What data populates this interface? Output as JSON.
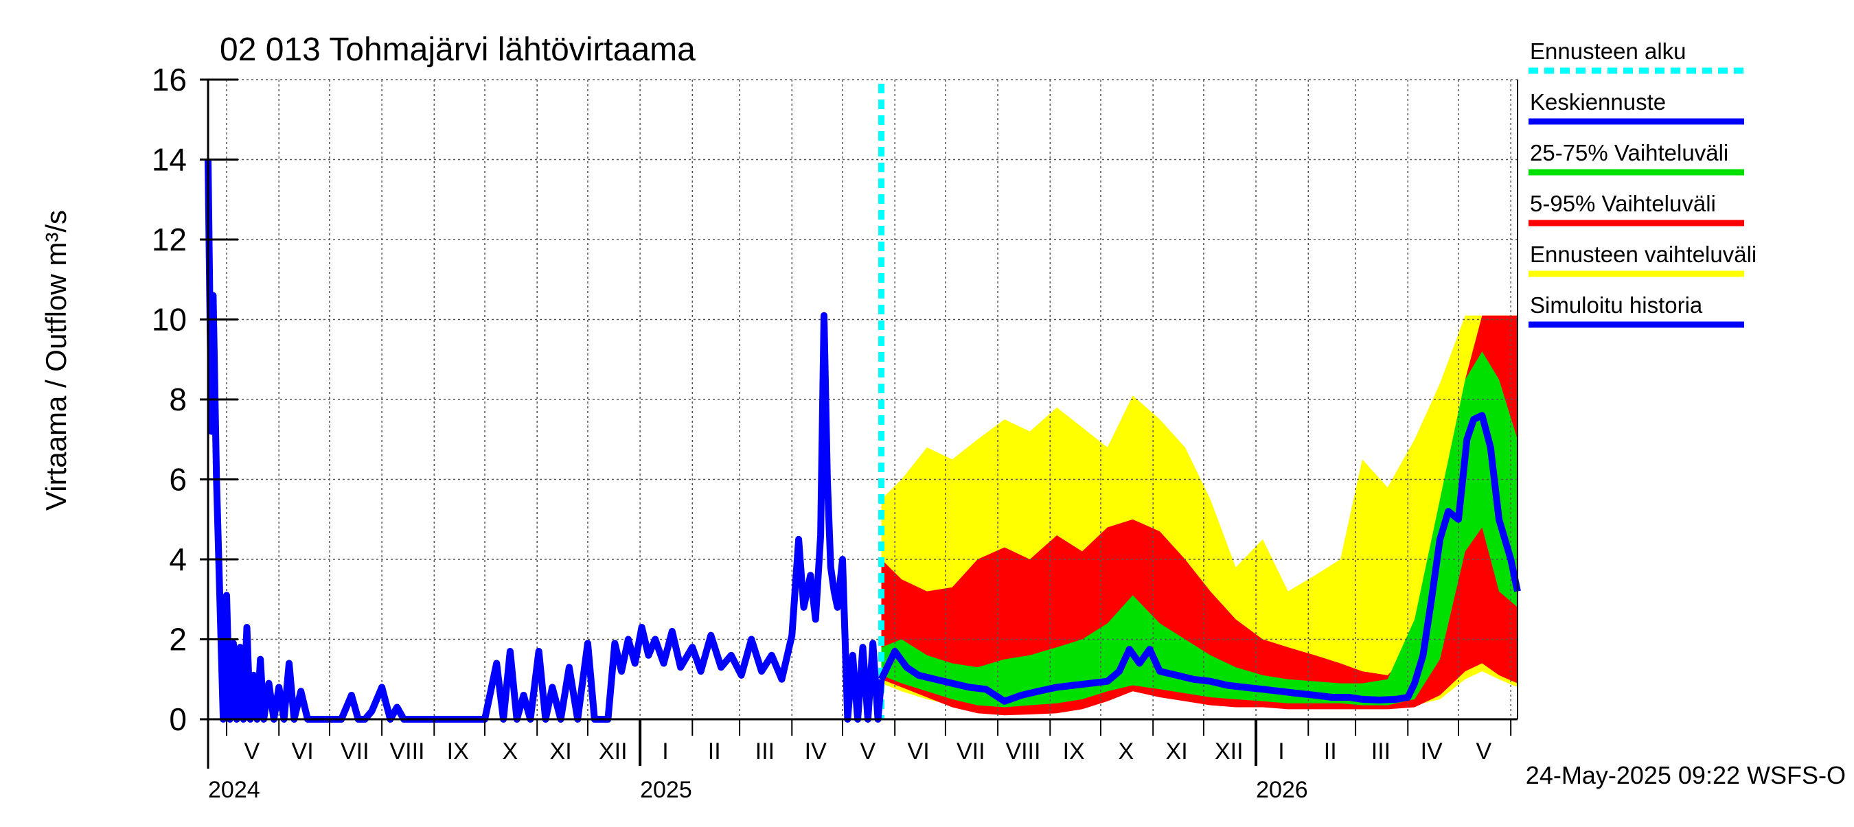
{
  "chart_data": {
    "type": "area",
    "title": "02 013 Tohmajärvi lähtövirtaama",
    "ylabel": "Virtaama / Outflow    m³/s",
    "ylim": [
      0,
      16
    ],
    "yticks": [
      "0",
      "2",
      "4",
      "6",
      "8",
      "10",
      "12",
      "14",
      "16"
    ],
    "grid": true,
    "legend_position": "right",
    "x_range": [
      "2024-04-20",
      "2026-06-05"
    ],
    "forecast_start": "2025-05-24",
    "month_labels": [
      {
        "label": "V",
        "mid": "2024-05-16"
      },
      {
        "label": "VI",
        "mid": "2024-06-15"
      },
      {
        "label": "VII",
        "mid": "2024-07-16"
      },
      {
        "label": "VIII",
        "mid": "2024-08-16"
      },
      {
        "label": "IX",
        "mid": "2024-09-15"
      },
      {
        "label": "X",
        "mid": "2024-10-16"
      },
      {
        "label": "XI",
        "mid": "2024-11-15"
      },
      {
        "label": "XII",
        "mid": "2024-12-16"
      },
      {
        "label": "I",
        "mid": "2025-01-16"
      },
      {
        "label": "II",
        "mid": "2025-02-14"
      },
      {
        "label": "III",
        "mid": "2025-03-16"
      },
      {
        "label": "IV",
        "mid": "2025-04-15"
      },
      {
        "label": "V",
        "mid": "2025-05-16"
      },
      {
        "label": "VI",
        "mid": "2025-06-15"
      },
      {
        "label": "VII",
        "mid": "2025-07-16"
      },
      {
        "label": "VIII",
        "mid": "2025-08-16"
      },
      {
        "label": "IX",
        "mid": "2025-09-15"
      },
      {
        "label": "X",
        "mid": "2025-10-16"
      },
      {
        "label": "XI",
        "mid": "2025-11-15"
      },
      {
        "label": "XII",
        "mid": "2025-12-16"
      },
      {
        "label": "I",
        "mid": "2026-01-16"
      },
      {
        "label": "II",
        "mid": "2026-02-14"
      },
      {
        "label": "III",
        "mid": "2026-03-16"
      },
      {
        "label": "IV",
        "mid": "2026-04-15"
      },
      {
        "label": "V",
        "mid": "2026-05-16"
      }
    ],
    "month_gridlines": [
      "2024-05-01",
      "2024-06-01",
      "2024-07-01",
      "2024-08-01",
      "2024-09-01",
      "2024-10-01",
      "2024-11-01",
      "2024-12-01",
      "2025-01-01",
      "2025-02-01",
      "2025-03-01",
      "2025-04-01",
      "2025-05-01",
      "2025-06-01",
      "2025-07-01",
      "2025-08-01",
      "2025-09-01",
      "2025-10-01",
      "2025-11-01",
      "2025-12-01",
      "2026-01-01",
      "2026-02-01",
      "2026-03-01",
      "2026-04-01",
      "2026-05-01",
      "2026-06-01"
    ],
    "year_labels": [
      {
        "label": "2024",
        "date": "2024-04-20"
      },
      {
        "label": "2025",
        "date": "2025-01-01"
      },
      {
        "label": "2026",
        "date": "2026-01-01"
      }
    ],
    "year_boundaries": [
      "2025-01-01",
      "2026-01-01"
    ],
    "series": [
      {
        "name": "Simuloitu historia",
        "color": "#0000ff",
        "type": "line",
        "x": [
          "2024-04-20",
          "2024-04-22",
          "2024-04-23",
          "2024-04-25",
          "2024-04-27",
          "2024-04-29",
          "2024-05-01",
          "2024-05-03",
          "2024-05-05",
          "2024-05-07",
          "2024-05-09",
          "2024-05-11",
          "2024-05-13",
          "2024-05-15",
          "2024-05-17",
          "2024-05-19",
          "2024-05-21",
          "2024-05-23",
          "2024-05-26",
          "2024-05-29",
          "2024-06-01",
          "2024-06-04",
          "2024-06-07",
          "2024-06-10",
          "2024-06-14",
          "2024-06-18",
          "2024-06-22",
          "2024-06-26",
          "2024-07-01",
          "2024-07-08",
          "2024-07-14",
          "2024-07-18",
          "2024-07-22",
          "2024-07-26",
          "2024-08-01",
          "2024-08-06",
          "2024-08-10",
          "2024-08-14",
          "2024-08-18",
          "2024-08-24",
          "2024-09-01",
          "2024-09-15",
          "2024-10-01",
          "2024-10-08",
          "2024-10-12",
          "2024-10-16",
          "2024-10-20",
          "2024-10-24",
          "2024-10-28",
          "2024-11-02",
          "2024-11-06",
          "2024-11-10",
          "2024-11-15",
          "2024-11-20",
          "2024-11-25",
          "2024-12-01",
          "2024-12-05",
          "2024-12-09",
          "2024-12-13",
          "2024-12-17",
          "2024-12-21",
          "2024-12-25",
          "2024-12-29",
          "2025-01-02",
          "2025-01-06",
          "2025-01-10",
          "2025-01-15",
          "2025-01-20",
          "2025-01-25",
          "2025-02-01",
          "2025-02-06",
          "2025-02-12",
          "2025-02-18",
          "2025-02-24",
          "2025-03-02",
          "2025-03-08",
          "2025-03-14",
          "2025-03-20",
          "2025-03-26",
          "2025-04-01",
          "2025-04-05",
          "2025-04-08",
          "2025-04-12",
          "2025-04-15",
          "2025-04-18",
          "2025-04-20",
          "2025-04-22",
          "2025-04-24",
          "2025-04-26",
          "2025-04-28",
          "2025-05-01",
          "2025-05-04",
          "2025-05-07",
          "2025-05-10",
          "2025-05-13",
          "2025-05-16",
          "2025-05-19",
          "2025-05-22",
          "2025-05-24"
        ],
        "y": [
          14.0,
          7.2,
          10.6,
          6.0,
          3.0,
          0.0,
          3.1,
          0.0,
          1.9,
          0.0,
          1.8,
          0.0,
          2.3,
          0.0,
          1.1,
          0.0,
          1.5,
          0.0,
          0.9,
          0.0,
          0.8,
          0.0,
          1.4,
          0.0,
          0.7,
          0.0,
          0.0,
          0.0,
          0.0,
          0.0,
          0.6,
          0.0,
          0.0,
          0.2,
          0.8,
          0.0,
          0.3,
          0.0,
          0.0,
          0.0,
          0.0,
          0.0,
          0.0,
          1.4,
          0.0,
          1.7,
          0.0,
          0.6,
          0.0,
          1.7,
          0.0,
          0.8,
          0.0,
          1.3,
          0.0,
          1.9,
          0.0,
          0.0,
          0.0,
          1.9,
          1.2,
          2.0,
          1.4,
          2.3,
          1.6,
          2.0,
          1.4,
          2.2,
          1.3,
          1.8,
          1.2,
          2.1,
          1.3,
          1.6,
          1.1,
          2.0,
          1.2,
          1.6,
          1.0,
          2.1,
          4.5,
          2.8,
          3.6,
          2.5,
          4.6,
          10.1,
          6.0,
          3.8,
          3.2,
          2.8,
          4.0,
          0.0,
          1.6,
          0.0,
          1.8,
          0.0,
          1.9,
          0.0,
          1.0
        ]
      },
      {
        "name": "Ennusteen vaihteluväli",
        "color": "#ffff00",
        "type": "band",
        "x": [
          "2025-05-24",
          "2025-06-05",
          "2025-06-20",
          "2025-07-05",
          "2025-07-20",
          "2025-08-05",
          "2025-08-20",
          "2025-09-05",
          "2025-09-20",
          "2025-10-05",
          "2025-10-20",
          "2025-11-05",
          "2025-11-20",
          "2025-12-05",
          "2025-12-20",
          "2026-01-05",
          "2026-01-20",
          "2026-02-05",
          "2026-02-20",
          "2026-03-05",
          "2026-03-20",
          "2026-04-05",
          "2026-04-20",
          "2026-05-05",
          "2026-05-15",
          "2026-05-25",
          "2026-06-05"
        ],
        "low": [
          0.9,
          0.7,
          0.5,
          0.35,
          0.3,
          0.3,
          0.3,
          0.35,
          0.45,
          0.6,
          0.7,
          0.6,
          0.5,
          0.45,
          0.4,
          0.35,
          0.35,
          0.3,
          0.3,
          0.3,
          0.3,
          0.35,
          0.5,
          1.0,
          1.2,
          1.0,
          0.8
        ],
        "high": [
          5.5,
          6.0,
          6.8,
          6.5,
          7.0,
          7.5,
          7.2,
          7.8,
          7.3,
          6.8,
          8.1,
          7.5,
          6.8,
          5.5,
          3.8,
          4.5,
          3.2,
          3.6,
          4.0,
          6.5,
          5.8,
          7.0,
          8.4,
          10.1,
          10.1,
          10.1,
          10.1
        ]
      },
      {
        "name": "5-95% Vaihteluväli",
        "color": "#ff0000",
        "type": "band",
        "x": [
          "2025-05-24",
          "2025-06-05",
          "2025-06-20",
          "2025-07-05",
          "2025-07-20",
          "2025-08-05",
          "2025-08-20",
          "2025-09-05",
          "2025-09-20",
          "2025-10-05",
          "2025-10-20",
          "2025-11-05",
          "2025-11-20",
          "2025-12-05",
          "2025-12-20",
          "2026-01-05",
          "2026-01-20",
          "2026-02-05",
          "2026-02-20",
          "2026-03-05",
          "2026-03-20",
          "2026-04-05",
          "2026-04-20",
          "2026-05-05",
          "2026-05-15",
          "2026-05-25",
          "2026-06-05"
        ],
        "low": [
          1.0,
          0.8,
          0.55,
          0.3,
          0.15,
          0.1,
          0.12,
          0.15,
          0.25,
          0.45,
          0.7,
          0.55,
          0.45,
          0.35,
          0.3,
          0.3,
          0.25,
          0.25,
          0.25,
          0.25,
          0.25,
          0.3,
          0.6,
          1.2,
          1.4,
          1.1,
          0.9
        ],
        "high": [
          4.0,
          3.5,
          3.2,
          3.3,
          4.0,
          4.3,
          4.0,
          4.6,
          4.2,
          4.8,
          5.0,
          4.7,
          4.0,
          3.2,
          2.5,
          2.0,
          1.8,
          1.6,
          1.4,
          1.2,
          1.1,
          1.8,
          4.0,
          8.5,
          10.1,
          10.1,
          10.1
        ]
      },
      {
        "name": "25-75% Vaihteluväli",
        "color": "#00e000",
        "type": "band",
        "x": [
          "2025-05-24",
          "2025-06-05",
          "2025-06-20",
          "2025-07-05",
          "2025-07-20",
          "2025-08-05",
          "2025-08-20",
          "2025-09-05",
          "2025-09-20",
          "2025-10-05",
          "2025-10-20",
          "2025-11-05",
          "2025-11-20",
          "2025-12-05",
          "2025-12-20",
          "2026-01-05",
          "2026-01-20",
          "2026-02-05",
          "2026-02-20",
          "2026-03-05",
          "2026-03-20",
          "2026-04-05",
          "2026-04-20",
          "2026-05-05",
          "2026-05-15",
          "2026-05-25",
          "2026-06-05"
        ],
        "low": [
          1.1,
          0.9,
          0.7,
          0.5,
          0.35,
          0.3,
          0.35,
          0.4,
          0.5,
          0.7,
          0.85,
          0.75,
          0.65,
          0.55,
          0.5,
          0.45,
          0.4,
          0.4,
          0.4,
          0.35,
          0.35,
          0.5,
          1.5,
          4.2,
          4.8,
          3.2,
          2.8
        ],
        "high": [
          1.8,
          2.0,
          1.6,
          1.4,
          1.3,
          1.5,
          1.6,
          1.8,
          2.0,
          2.4,
          3.1,
          2.4,
          2.0,
          1.6,
          1.3,
          1.1,
          1.0,
          0.95,
          0.9,
          0.9,
          1.0,
          2.5,
          5.5,
          8.5,
          9.2,
          8.5,
          7.0
        ]
      },
      {
        "name": "Keskiennuste",
        "color": "#0000ff",
        "type": "line",
        "x": [
          "2025-05-24",
          "2025-06-01",
          "2025-06-08",
          "2025-06-15",
          "2025-06-25",
          "2025-07-05",
          "2025-07-15",
          "2025-07-25",
          "2025-08-05",
          "2025-08-15",
          "2025-08-25",
          "2025-09-05",
          "2025-09-15",
          "2025-09-25",
          "2025-10-05",
          "2025-10-12",
          "2025-10-18",
          "2025-10-24",
          "2025-10-30",
          "2025-11-05",
          "2025-11-15",
          "2025-11-25",
          "2025-12-05",
          "2025-12-15",
          "2025-12-25",
          "2026-01-05",
          "2026-01-15",
          "2026-01-25",
          "2026-02-05",
          "2026-02-15",
          "2026-02-25",
          "2026-03-05",
          "2026-03-15",
          "2026-03-25",
          "2026-04-01",
          "2026-04-05",
          "2026-04-10",
          "2026-04-15",
          "2026-04-20",
          "2026-04-25",
          "2026-05-01",
          "2026-05-06",
          "2026-05-10",
          "2026-05-15",
          "2026-05-20",
          "2026-05-25",
          "2026-06-01",
          "2026-06-05"
        ],
        "y": [
          1.0,
          1.7,
          1.3,
          1.1,
          1.0,
          0.9,
          0.8,
          0.75,
          0.45,
          0.6,
          0.7,
          0.8,
          0.85,
          0.9,
          0.95,
          1.2,
          1.75,
          1.4,
          1.75,
          1.2,
          1.1,
          1.0,
          0.95,
          0.85,
          0.8,
          0.75,
          0.7,
          0.65,
          0.6,
          0.55,
          0.55,
          0.5,
          0.48,
          0.5,
          0.55,
          0.9,
          1.6,
          3.0,
          4.5,
          5.2,
          5.0,
          7.0,
          7.5,
          7.6,
          6.8,
          5.0,
          4.0,
          3.2
        ]
      }
    ],
    "legend": [
      {
        "label": "Ennusteen alku",
        "color": "#00ffff",
        "style": "dashed"
      },
      {
        "label": "Keskiennuste",
        "color": "#0000ff",
        "style": "solid"
      },
      {
        "label": "25-75% Vaihteluväli",
        "color": "#00e000",
        "style": "solid"
      },
      {
        "label": "5-95% Vaihteluväli",
        "color": "#ff0000",
        "style": "solid"
      },
      {
        "label": "Ennusteen vaihteluväli",
        "color": "#ffff00",
        "style": "solid"
      },
      {
        "label": "Simuloitu historia",
        "color": "#0000ff",
        "style": "solid"
      }
    ],
    "footer": "24-May-2025 09:22 WSFS-O"
  }
}
